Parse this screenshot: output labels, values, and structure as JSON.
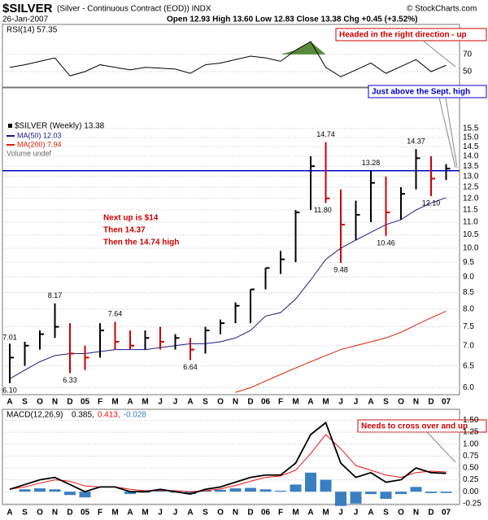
{
  "header": {
    "title": "$SILVER",
    "subtitle": "(Silver - Continuous Contract (EOD)) INDX",
    "date": "26-Jan-2007",
    "quote": "Open 12.93 High 13.60 Low 12.83 Close 13.38 Chg +0.45 (+3.52%)",
    "credit": "© StockCharts.com"
  },
  "chart_data": [
    {
      "type": "rsi",
      "title": "RSI(14) 57.35",
      "color": "#000000",
      "fill_color": "#5a8a3a",
      "values": [
        55,
        58,
        62,
        66,
        45,
        50,
        58,
        55,
        52,
        55,
        54,
        53,
        48,
        58,
        60,
        64,
        68,
        66,
        62,
        75,
        85,
        55,
        44,
        52,
        60,
        48,
        56,
        64,
        50,
        57.35
      ],
      "ylim": [
        32,
        105
      ],
      "yticks": [
        50,
        70
      ],
      "grid": true,
      "annotation": "Headed in the right direction - up"
    },
    {
      "type": "ohlc",
      "title": "$SILVER (Weekly) 13.38",
      "log_scale": true,
      "grid": true,
      "categories": [
        "A",
        "S",
        "O",
        "N",
        "D",
        "05",
        "F",
        "M",
        "A",
        "M",
        "J",
        "J",
        "A",
        "S",
        "O",
        "N",
        "D",
        "06",
        "F",
        "M",
        "A",
        "M",
        "J",
        "J",
        "A",
        "S",
        "O",
        "N",
        "D",
        "07"
      ],
      "high": [
        7.05,
        7.1,
        7.4,
        8.17,
        7.6,
        7.0,
        7.6,
        7.64,
        7.4,
        7.4,
        7.5,
        7.3,
        7.2,
        7.5,
        7.7,
        8.2,
        8.6,
        9.3,
        9.9,
        11.5,
        14.0,
        14.74,
        12.4,
        11.9,
        13.28,
        13.0,
        12.5,
        14.37,
        14.0,
        13.6
      ],
      "low": [
        6.1,
        6.5,
        6.9,
        7.2,
        6.33,
        6.4,
        6.7,
        6.9,
        6.9,
        6.9,
        6.9,
        6.9,
        6.64,
        6.8,
        7.3,
        7.6,
        7.6,
        8.6,
        9.1,
        9.5,
        11.5,
        11.8,
        9.48,
        10.3,
        11.0,
        10.46,
        11.1,
        12.4,
        12.1,
        12.83
      ],
      "close": [
        6.7,
        7.0,
        7.3,
        7.5,
        6.8,
        6.7,
        7.4,
        7.1,
        7.0,
        7.2,
        7.1,
        7.2,
        6.9,
        7.4,
        7.6,
        8.1,
        8.6,
        9.3,
        9.6,
        11.4,
        13.5,
        12.0,
        10.9,
        11.3,
        12.7,
        11.4,
        12.2,
        13.9,
        12.9,
        13.38
      ],
      "up_color": "#000000",
      "down_color": "#cc0000",
      "series": [
        {
          "name": "MA(50) 12.03",
          "color": "#1a1a8c",
          "values": [
            6.2,
            6.4,
            6.6,
            6.75,
            6.8,
            6.8,
            6.85,
            6.9,
            6.9,
            6.9,
            6.95,
            7.0,
            7.05,
            7.05,
            7.1,
            7.2,
            7.4,
            7.8,
            7.9,
            8.3,
            8.9,
            9.6,
            10.0,
            10.3,
            10.6,
            10.9,
            11.1,
            11.5,
            11.8,
            12.03
          ]
        },
        {
          "name": "MA(200) 7.94",
          "color": "#dd2200",
          "values": [
            null,
            null,
            null,
            null,
            null,
            null,
            null,
            null,
            null,
            null,
            null,
            null,
            null,
            null,
            null,
            5.9,
            6.0,
            6.15,
            6.3,
            6.45,
            6.6,
            6.75,
            6.9,
            7.0,
            7.1,
            7.2,
            7.35,
            7.55,
            7.75,
            7.94
          ]
        }
      ],
      "volume_label": "Volume undef",
      "reference_line": 13.28,
      "reference_color": "#0000cc",
      "ylim": [
        5.85,
        16.2
      ],
      "yticks": [
        {
          "value": 6.0,
          "label": "6.0"
        },
        {
          "value": 6.5,
          "label": "6.5"
        },
        {
          "value": 7.0,
          "label": "7.0"
        },
        {
          "value": 7.5,
          "label": "7.5"
        },
        {
          "value": 8.0,
          "label": "8.0"
        },
        {
          "value": 8.5,
          "label": "8.5"
        },
        {
          "value": 9.0,
          "label": "9.0"
        },
        {
          "value": 9.5,
          "label": "9.5"
        },
        {
          "value": 10.0,
          "label": "10.0"
        },
        {
          "value": 10.5,
          "label": "10.5"
        },
        {
          "value": 11.0,
          "label": "11.0"
        },
        {
          "value": 11.5,
          "label": "11.5"
        },
        {
          "value": 12.0,
          "label": "12.0"
        },
        {
          "value": 12.5,
          "label": "12.5"
        },
        {
          "value": 13.0,
          "label": "13.0"
        },
        {
          "value": 13.5,
          "label": "13.5"
        },
        {
          "value": 14.0,
          "label": "14.0"
        },
        {
          "value": 14.5,
          "label": "14.5"
        },
        {
          "value": 15.0,
          "label": "15.0"
        },
        {
          "value": 15.5,
          "label": "15.5"
        }
      ],
      "point_labels": [
        {
          "value": 7.01,
          "label": "7.01"
        },
        {
          "value": 6.1,
          "label": "6.10"
        },
        {
          "value": 8.17,
          "label": "8.17"
        },
        {
          "value": 6.33,
          "label": "6.33"
        },
        {
          "value": 7.64,
          "label": "7.64"
        },
        {
          "value": 6.64,
          "label": "6.64"
        },
        {
          "value": 14.74,
          "label": "14.74"
        },
        {
          "value": 11.8,
          "label": "11.80"
        },
        {
          "value": 9.48,
          "label": "9.48"
        },
        {
          "value": 13.28,
          "label": "13.28"
        },
        {
          "value": 10.46,
          "label": "10.46"
        },
        {
          "value": 14.37,
          "label": "14.37"
        },
        {
          "value": 12.1,
          "label": "12.10"
        }
      ],
      "annotations": [
        "Just above the Sept. high",
        "Next up is $14",
        "Then 14.37",
        "Then the 14.74 high"
      ]
    },
    {
      "type": "macd",
      "title": "MACD(12,26,9)",
      "categories": [
        "A",
        "S",
        "O",
        "N",
        "D",
        "05",
        "F",
        "M",
        "A",
        "M",
        "J",
        "J",
        "A",
        "S",
        "O",
        "N",
        "D",
        "06",
        "F",
        "M",
        "A",
        "M",
        "J",
        "J",
        "A",
        "S",
        "O",
        "N",
        "D",
        "07"
      ],
      "series": [
        {
          "name": "0.385,",
          "color": "#000000",
          "values": [
            0.05,
            0.15,
            0.25,
            0.3,
            0.15,
            0.0,
            0.1,
            0.1,
            0.0,
            0.0,
            0.05,
            0.0,
            -0.05,
            0.05,
            0.1,
            0.2,
            0.3,
            0.35,
            0.35,
            0.6,
            1.2,
            1.45,
            0.6,
            0.3,
            0.4,
            0.2,
            0.25,
            0.5,
            0.4,
            0.385
          ]
        },
        {
          "name": "0.413,",
          "color": "#ee1111",
          "values": [
            0.05,
            0.1,
            0.18,
            0.25,
            0.22,
            0.12,
            0.1,
            0.1,
            0.05,
            0.02,
            0.03,
            0.02,
            0.0,
            0.02,
            0.06,
            0.13,
            0.22,
            0.3,
            0.33,
            0.45,
            0.8,
            1.2,
            0.9,
            0.55,
            0.45,
            0.35,
            0.3,
            0.4,
            0.43,
            0.413
          ]
        },
        {
          "name": "-0.028",
          "color": "#3a80c0",
          "values": [
            0,
            0.05,
            0.07,
            0.05,
            -0.07,
            -0.12,
            0,
            0,
            -0.05,
            -0.02,
            0.02,
            -0.02,
            -0.05,
            0.03,
            0.04,
            0.07,
            0.08,
            0.05,
            0.02,
            0.15,
            0.4,
            0.25,
            -0.3,
            -0.25,
            -0.05,
            -0.15,
            -0.05,
            0.1,
            -0.03,
            -0.028
          ]
        }
      ],
      "ylim": [
        -0.27,
        1.73
      ],
      "yticks": [
        {
          "value": -0.25,
          "label": "-0.25"
        },
        {
          "value": 0,
          "label": "0.00"
        },
        {
          "value": 0.25,
          "label": "0.25"
        },
        {
          "value": 0.5,
          "label": "0.50"
        },
        {
          "value": 0.75,
          "label": "0.75"
        },
        {
          "value": 1.0,
          "label": "1.00"
        },
        {
          "value": 1.25,
          "label": "1.25"
        },
        {
          "value": 1.5,
          "label": "1.50"
        }
      ],
      "grid": true,
      "annotation": "Needs to cross over and up"
    }
  ]
}
